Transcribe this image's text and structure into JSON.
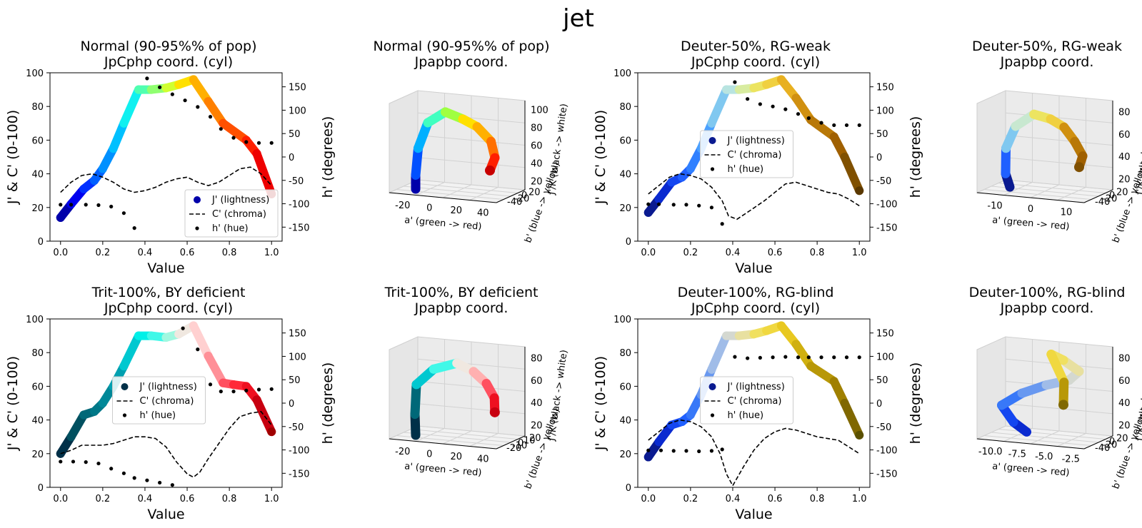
{
  "figure_title": "jet",
  "colors": {
    "axis": "#000000",
    "chroma_line": "#000000",
    "hue_dots": "#000000",
    "pane_bg": "#f2f2f2",
    "grid": "#d2d2d2"
  },
  "chart_data": [
    {
      "id": "normal-cyl",
      "type": "line",
      "title": "Normal (90-95%% of pop)\nJpCphp coord. (cyl)",
      "xlabel": "Value",
      "ylabel": "J' & C' (0-100)",
      "y2label": "h' (degrees)",
      "xlim": [
        -0.05,
        1.05
      ],
      "ylim": [
        0,
        100
      ],
      "y2lim": [
        -180,
        180
      ],
      "xticks": [
        "0.0",
        "0.2",
        "0.4",
        "0.6",
        "0.8",
        "1.0"
      ],
      "yticks": [
        "0",
        "20",
        "40",
        "60",
        "80",
        "100"
      ],
      "y2ticks": [
        "-150",
        "-100",
        "-50",
        "0",
        "50",
        "100",
        "150"
      ],
      "legend": {
        "position": "lower-right",
        "entries": [
          "J' (lightness)",
          "C' (chroma)",
          "h' (hue)"
        ]
      },
      "series": [
        {
          "name": "J' (lightness)",
          "x": [
            0,
            0.05,
            0.11,
            0.16,
            0.2,
            0.25,
            0.3,
            0.37,
            0.43,
            0.5,
            0.56,
            0.63,
            0.7,
            0.77,
            0.88,
            0.93,
            1.0
          ],
          "values": [
            14,
            22,
            31,
            36,
            43,
            55,
            70,
            90,
            90,
            91,
            93,
            96,
            83,
            70,
            60,
            52,
            28
          ],
          "colors": [
            "#0000aa",
            "#0000ee",
            "#0030ff",
            "#0060ff",
            "#0090ff",
            "#00c0ff",
            "#10f0f0",
            "#50ffb0",
            "#90ff70",
            "#d0ff30",
            "#ffe000",
            "#ffb000",
            "#ff8000",
            "#ff5000",
            "#ff2000",
            "#ee0000",
            "#aa0000"
          ]
        },
        {
          "name": "C' (chroma)",
          "x": [
            0,
            0.05,
            0.1,
            0.15,
            0.2,
            0.25,
            0.3,
            0.35,
            0.4,
            0.45,
            0.5,
            0.55,
            0.6,
            0.65,
            0.7,
            0.75,
            0.8,
            0.85,
            0.9,
            0.95,
            1.0
          ],
          "values": [
            29,
            35,
            39,
            40,
            38,
            35,
            31,
            29,
            30,
            32,
            35,
            37,
            38,
            35,
            33,
            35,
            39,
            43,
            44,
            40,
            33
          ]
        },
        {
          "name": "h' (hue)",
          "axis": "right",
          "x": [
            0,
            0.05,
            0.12,
            0.18,
            0.24,
            0.3,
            0.35,
            0.41,
            0.47,
            0.53,
            0.59,
            0.65,
            0.71,
            0.76,
            0.82,
            0.88,
            0.94,
            1.0
          ],
          "values": [
            -102,
            -102,
            -102,
            -103,
            -106,
            -120,
            -152,
            168,
            149,
            134,
            121,
            107,
            86,
            60,
            41,
            32,
            30,
            30
          ]
        }
      ]
    },
    {
      "id": "normal-3d",
      "type": "scatter3d",
      "title": "Normal (90-95%% of pop)\nJpapbp coord.",
      "xlabel": "a' (green -> red)",
      "ylabel": "b' (blue -> yellow)",
      "zlabel": "J'/K (black -> white)",
      "xticks": [
        "-20",
        "0",
        "20",
        "40"
      ],
      "yticks": [
        "-40",
        "-20",
        "0",
        "20"
      ],
      "zticks": [
        "20",
        "40",
        "60",
        "80",
        "100"
      ]
    },
    {
      "id": "deuter50-cyl",
      "type": "line",
      "title": "Deuter-50%, RG-weak\nJpCphp coord. (cyl)",
      "xlabel": "Value",
      "ylabel": "J' & C' (0-100)",
      "y2label": "h' (degrees)",
      "xlim": [
        -0.05,
        1.05
      ],
      "ylim": [
        0,
        100
      ],
      "y2lim": [
        -180,
        180
      ],
      "xticks": [
        "0.0",
        "0.2",
        "0.4",
        "0.6",
        "0.8",
        "1.0"
      ],
      "yticks": [
        "0",
        "20",
        "40",
        "60",
        "80",
        "100"
      ],
      "y2ticks": [
        "-150",
        "-100",
        "-50",
        "0",
        "50",
        "100",
        "150"
      ],
      "legend": {
        "position": "center",
        "entries": [
          "J' (lightness)",
          "C' (chroma)",
          "h' (hue)"
        ]
      },
      "series": [
        {
          "name": "J' (lightness)",
          "x": [
            0,
            0.05,
            0.11,
            0.16,
            0.2,
            0.25,
            0.3,
            0.37,
            0.43,
            0.5,
            0.56,
            0.63,
            0.7,
            0.77,
            0.88,
            0.93,
            1.0
          ],
          "values": [
            17,
            25,
            35,
            38,
            43,
            55,
            70,
            90,
            90,
            91,
            93,
            96,
            85,
            72,
            62,
            50,
            30
          ],
          "colors": [
            "#0a1a90",
            "#0a2ad0",
            "#1446f0",
            "#2060ff",
            "#3080ff",
            "#4aa0ff",
            "#80c8f0",
            "#b8e4e0",
            "#d8eca0",
            "#ece460",
            "#f0d040",
            "#e8b020",
            "#d09010",
            "#b87808",
            "#a06000",
            "#805000",
            "#5a3800"
          ]
        },
        {
          "name": "C' (chroma)",
          "x": [
            0,
            0.05,
            0.1,
            0.15,
            0.2,
            0.25,
            0.3,
            0.35,
            0.38,
            0.42,
            0.48,
            0.55,
            0.6,
            0.65,
            0.7,
            0.75,
            0.8,
            0.85,
            0.9,
            0.95,
            1.0
          ],
          "values": [
            28,
            33,
            38,
            40,
            39,
            37,
            32,
            24,
            15,
            13,
            18,
            24,
            29,
            34,
            35,
            33,
            31,
            29,
            28,
            25,
            21
          ]
        },
        {
          "name": "h' (hue)",
          "axis": "right",
          "x": [
            0,
            0.05,
            0.12,
            0.18,
            0.24,
            0.3,
            0.35,
            0.41,
            0.47,
            0.53,
            0.59,
            0.65,
            0.71,
            0.76,
            0.82,
            0.88,
            0.94,
            1.0
          ],
          "values": [
            -101,
            -101,
            -102,
            -102,
            -104,
            -108,
            -143,
            160,
            124,
            113,
            108,
            102,
            92,
            83,
            73,
            68,
            68,
            68
          ]
        }
      ]
    },
    {
      "id": "deuter50-3d",
      "type": "scatter3d",
      "title": "Deuter-50%, RG-weak\nJpapbp coord.",
      "xlabel": "a' (green -> red)",
      "ylabel": "b' (blue -> yellow)",
      "zlabel": "J'/K (black -> white)",
      "xticks": [
        "-10",
        "0",
        "10"
      ],
      "yticks": [
        "-40",
        "-20",
        "0",
        "20"
      ],
      "zticks": [
        "20",
        "40",
        "60",
        "80"
      ]
    },
    {
      "id": "trit-cyl",
      "type": "line",
      "title": "Trit-100%, BY deficient\nJpCphp coord. (cyl)",
      "xlabel": "Value",
      "ylabel": "J' & C' (0-100)",
      "y2label": "h' (degrees)",
      "xlim": [
        -0.05,
        1.05
      ],
      "ylim": [
        0,
        100
      ],
      "y2lim": [
        -180,
        180
      ],
      "xticks": [
        "0.0",
        "0.2",
        "0.4",
        "0.6",
        "0.8",
        "1.0"
      ],
      "yticks": [
        "0",
        "20",
        "40",
        "60",
        "80",
        "100"
      ],
      "y2ticks": [
        "-150",
        "-100",
        "-50",
        "0",
        "50",
        "100",
        "150"
      ],
      "legend": {
        "position": "center",
        "entries": [
          "J' (lightness)",
          "C' (chroma)",
          "h' (hue)"
        ]
      },
      "series": [
        {
          "name": "J' (lightness)",
          "x": [
            0,
            0.05,
            0.11,
            0.16,
            0.2,
            0.25,
            0.3,
            0.37,
            0.43,
            0.5,
            0.56,
            0.63,
            0.7,
            0.77,
            0.82,
            0.88,
            0.93,
            1.0
          ],
          "values": [
            20,
            30,
            43,
            45,
            50,
            60,
            72,
            90,
            90,
            89,
            91,
            96,
            78,
            62,
            61,
            60,
            52,
            33
          ],
          "colors": [
            "#003048",
            "#005060",
            "#006878",
            "#007888",
            "#008898",
            "#00a0b0",
            "#00c8d0",
            "#00f0e8",
            "#40f8e8",
            "#a0f8e0",
            "#f0e8e0",
            "#ffd0d0",
            "#ff9098",
            "#ff5060",
            "#ff2838",
            "#ee1020",
            "#c80010",
            "#a00000"
          ]
        },
        {
          "name": "C' (chroma)",
          "x": [
            0,
            0.05,
            0.1,
            0.15,
            0.2,
            0.25,
            0.3,
            0.35,
            0.4,
            0.45,
            0.5,
            0.55,
            0.6,
            0.63,
            0.66,
            0.7,
            0.75,
            0.8,
            0.85,
            0.9,
            0.95,
            1.0
          ],
          "values": [
            20,
            22,
            25,
            25,
            25,
            26,
            28,
            30,
            30,
            29,
            24,
            15,
            8,
            6,
            9,
            17,
            26,
            35,
            42,
            44,
            45,
            37
          ]
        },
        {
          "name": "h' (hue)",
          "axis": "right",
          "x": [
            0,
            0.06,
            0.12,
            0.18,
            0.24,
            0.3,
            0.35,
            0.41,
            0.47,
            0.53,
            0.58,
            0.65,
            0.71,
            0.76,
            0.82,
            0.88,
            0.94,
            1.0
          ],
          "values": [
            -125,
            -125,
            -126,
            -129,
            -140,
            -150,
            -160,
            -165,
            -170,
            -175,
            160,
            115,
            40,
            25,
            25,
            27,
            29,
            30
          ]
        }
      ]
    },
    {
      "id": "trit-3d",
      "type": "scatter3d",
      "title": "Trit-100%, BY deficient\nJpapbp coord.",
      "xlabel": "a' (green -> red)",
      "ylabel": "b' (blue -> yellow)",
      "zlabel": "J'/K (black -> white)",
      "xticks": [
        "-20",
        "0",
        "20",
        "40"
      ],
      "yticks": [
        "-20",
        "-10",
        "0",
        "10",
        "20"
      ],
      "zticks": [
        "20",
        "40",
        "60",
        "80"
      ]
    },
    {
      "id": "deuter100-cyl",
      "type": "line",
      "title": "Deuter-100%, RG-blind\nJpCphp coord. (cyl)",
      "xlabel": "Value",
      "ylabel": "J' & C' (0-100)",
      "y2label": "h' (degrees)",
      "xlim": [
        -0.05,
        1.05
      ],
      "ylim": [
        0,
        100
      ],
      "y2lim": [
        -180,
        180
      ],
      "xticks": [
        "0.0",
        "0.2",
        "0.4",
        "0.6",
        "0.8",
        "1.0"
      ],
      "yticks": [
        "0",
        "20",
        "40",
        "60",
        "80",
        "100"
      ],
      "y2ticks": [
        "-150",
        "-100",
        "-50",
        "0",
        "50",
        "100",
        "150"
      ],
      "legend": {
        "position": "center",
        "entries": [
          "J' (lightness)",
          "C' (chroma)",
          "h' (hue)"
        ]
      },
      "series": [
        {
          "name": "J' (lightness)",
          "x": [
            0,
            0.05,
            0.11,
            0.16,
            0.2,
            0.25,
            0.3,
            0.37,
            0.43,
            0.5,
            0.56,
            0.63,
            0.7,
            0.77,
            0.88,
            0.93,
            1.0
          ],
          "values": [
            18,
            27,
            37,
            39,
            43,
            55,
            70,
            90,
            90,
            91,
            93,
            96,
            85,
            72,
            63,
            50,
            31
          ],
          "colors": [
            "#0a1a90",
            "#0a2ad0",
            "#1446f0",
            "#2060ff",
            "#3878f8",
            "#6898f0",
            "#a0bce8",
            "#d4d8d0",
            "#e8e0a0",
            "#f0e060",
            "#f0d840",
            "#e8c820",
            "#d0b010",
            "#b89808",
            "#a08000",
            "#806800",
            "#5a5000"
          ]
        },
        {
          "name": "C' (chroma)",
          "x": [
            0,
            0.05,
            0.1,
            0.15,
            0.2,
            0.25,
            0.3,
            0.34,
            0.37,
            0.4,
            0.45,
            0.5,
            0.55,
            0.6,
            0.65,
            0.7,
            0.75,
            0.8,
            0.85,
            0.9,
            0.95,
            1.0
          ],
          "values": [
            28,
            33,
            38,
            40,
            39,
            36,
            30,
            20,
            8,
            1,
            12,
            22,
            29,
            33,
            35,
            34,
            32,
            30,
            29,
            28,
            24,
            20
          ]
        },
        {
          "name": "h' (hue)",
          "axis": "right",
          "x": [
            0,
            0.06,
            0.12,
            0.18,
            0.24,
            0.3,
            0.35,
            0.41,
            0.47,
            0.53,
            0.59,
            0.65,
            0.71,
            0.76,
            0.82,
            0.88,
            0.94,
            1.0
          ],
          "values": [
            -101,
            -101,
            -102,
            -102,
            -103,
            -102,
            -99,
            99,
            96,
            97,
            98,
            99,
            98,
            98,
            98,
            98,
            98,
            98
          ]
        }
      ]
    },
    {
      "id": "deuter100-3d",
      "type": "scatter3d",
      "title": "Deuter-100%, RG-blind\nJpapbp coord.",
      "xlabel": "a' (green -> red)",
      "ylabel": "b' (blue -> yellow)",
      "zlabel": "J'/K (black -> white)",
      "xticks": [
        "-10.0",
        "-7.5",
        "-5.0",
        "-2.5"
      ],
      "yticks": [
        "-40",
        "-20",
        "0",
        "20"
      ],
      "zticks": [
        "20",
        "40",
        "60",
        "80"
      ]
    }
  ]
}
